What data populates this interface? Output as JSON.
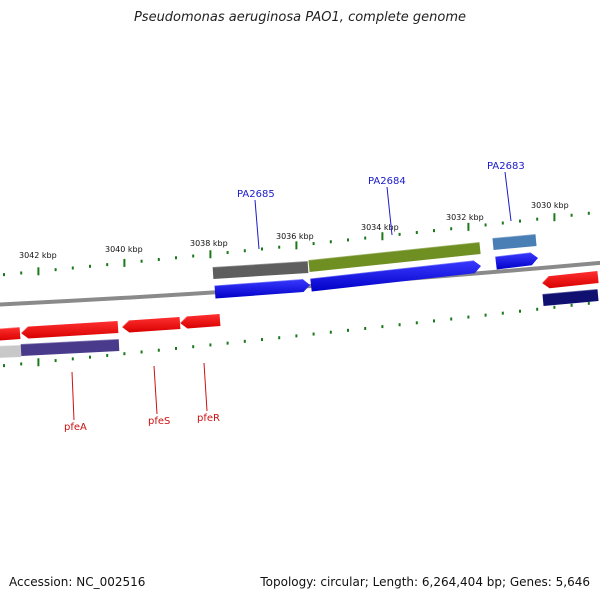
{
  "title": "Pseudomonas aeruginosa PAO1, complete genome",
  "footer": {
    "accession": "Accession: NC_002516",
    "stats": "Topology: circular; Length: 6,264,404 bp; Genes: 5,646"
  },
  "colors": {
    "backbone": "#888888",
    "tick": "#1a7a1a",
    "forward_gene": "#1010e0",
    "reverse_gene": "#e00000",
    "label_forward": "#1a1acc",
    "label_reverse": "#cc1111"
  },
  "scale_labels": [
    "3042 kbp",
    "3040 kbp",
    "3038 kbp",
    "3036 kbp",
    "3034 kbp",
    "3032 kbp",
    "3030 kbp"
  ],
  "gene_labels_top": [
    "PA2685",
    "PA2684",
    "PA2683"
  ],
  "gene_labels_bottom": [
    "pfeA",
    "pfeS",
    "pfeR"
  ]
}
